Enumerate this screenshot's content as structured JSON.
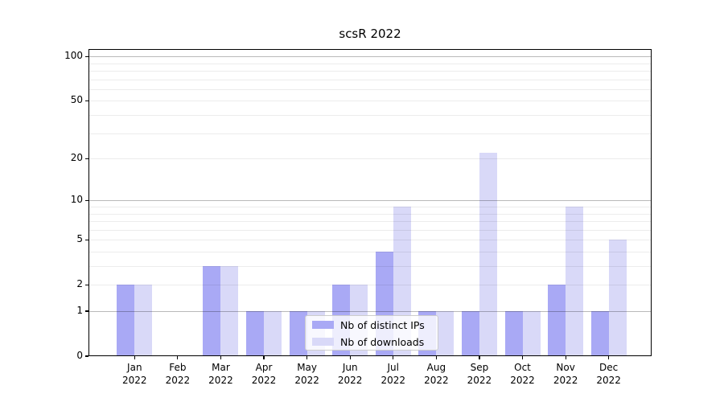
{
  "title": "scsR 2022",
  "chart_data": {
    "type": "bar",
    "title": "scsR 2022",
    "xlabel": "",
    "ylabel": "",
    "yscale": "log1p",
    "yticks": [
      0,
      1,
      2,
      5,
      10,
      20,
      50,
      100
    ],
    "ylim": [
      0,
      110
    ],
    "grid": true,
    "legend_position": "lower center",
    "categories": [
      "Jan 2022",
      "Feb 2022",
      "Mar 2022",
      "Apr 2022",
      "May 2022",
      "Jun 2022",
      "Jul 2022",
      "Aug 2022",
      "Sep 2022",
      "Oct 2022",
      "Nov 2022",
      "Dec 2022"
    ],
    "series": [
      {
        "name": "Nb of distinct IPs",
        "color": "#a9a9f5",
        "values": [
          2,
          0,
          3,
          1,
          1,
          2,
          4,
          1,
          1,
          1,
          2,
          1
        ]
      },
      {
        "name": "Nb of downloads",
        "color": "#d9d9f8",
        "values": [
          2,
          0,
          3,
          1,
          1,
          2,
          9,
          1,
          22,
          1,
          9,
          5
        ]
      }
    ]
  }
}
